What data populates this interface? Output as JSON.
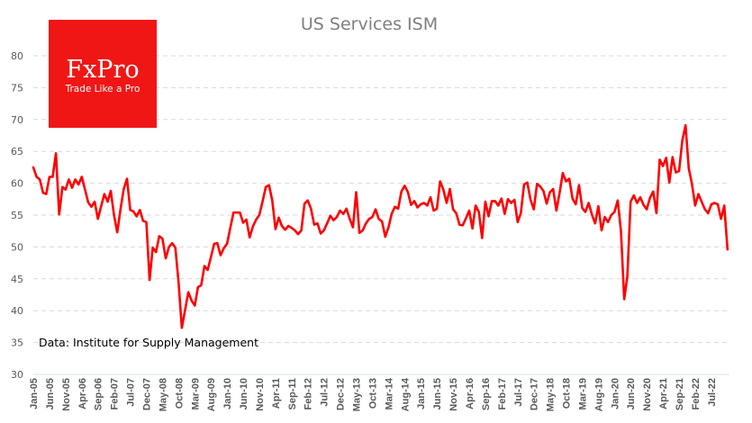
{
  "logo": {
    "brand": "FxPro",
    "tagline": "Trade Like a Pro",
    "color": "#f01616"
  },
  "annotation": "Data: Institute for Supply Management",
  "colors": {
    "line": "#ff0000",
    "grid": "#d9d9d9",
    "axis": "#d9e1ea"
  },
  "chart_data": {
    "type": "line",
    "title": "US Services ISM",
    "xlabel": "",
    "ylabel": "",
    "ylim": [
      30,
      80
    ],
    "yticks": [
      30,
      35,
      40,
      45,
      50,
      55,
      60,
      65,
      70,
      75,
      80
    ],
    "grid": true,
    "legend": "none",
    "x_start": "Jan-05",
    "x_end": "Dec-22",
    "frequency": "monthly",
    "xtick_labels": [
      "Jan-05",
      "Jun-05",
      "Nov-05",
      "Apr-06",
      "Sep-06",
      "Feb-07",
      "Jul-07",
      "Dec-07",
      "May-08",
      "Oct-08",
      "Mar-09",
      "Aug-09",
      "Jan-10",
      "Jun-10",
      "Nov-10",
      "Apr-11",
      "Sep-11",
      "Feb-12",
      "Jul-12",
      "Dec-12",
      "May-13",
      "Oct-13",
      "Mar-14",
      "Aug-14",
      "Jan-15",
      "Jun-15",
      "Nov-15",
      "Apr-16",
      "Sep-16",
      "Feb-17",
      "Jul-17",
      "Dec-17",
      "May-18",
      "Oct-18",
      "Mar-19",
      "Aug-19",
      "Jan-20",
      "Jun-20",
      "Nov-20",
      "Apr-21",
      "Sep-21",
      "Feb-22",
      "Jul-22"
    ],
    "series": [
      {
        "name": "US Services ISM",
        "values": [
          62.5,
          61.0,
          60.6,
          58.5,
          58.3,
          61.0,
          61.0,
          64.7,
          55.1,
          59.4,
          59.0,
          60.6,
          59.3,
          60.6,
          59.8,
          61.0,
          59.0,
          57.0,
          56.3,
          57.1,
          54.4,
          56.4,
          58.3,
          57.1,
          58.8,
          55.0,
          52.3,
          55.9,
          59.1,
          60.7,
          55.8,
          55.6,
          54.8,
          55.8,
          54.1,
          53.9,
          44.8,
          49.9,
          49.2,
          51.7,
          51.3,
          48.2,
          50.0,
          50.6,
          49.9,
          44.4,
          37.3,
          40.1,
          42.9,
          41.6,
          40.8,
          43.7,
          44.0,
          47.0,
          46.4,
          48.4,
          50.5,
          50.6,
          48.7,
          49.8,
          50.5,
          53.0,
          55.4,
          55.4,
          55.4,
          53.8,
          54.3,
          51.5,
          53.2,
          54.3,
          55.0,
          57.1,
          59.4,
          59.7,
          57.3,
          52.8,
          54.6,
          53.3,
          52.7,
          53.3,
          53.0,
          52.6,
          52.0,
          52.6,
          56.8,
          57.3,
          56.0,
          53.5,
          53.7,
          52.1,
          52.6,
          53.7,
          54.9,
          54.2,
          54.7,
          55.7,
          55.2,
          56.0,
          54.4,
          53.1,
          58.6,
          52.2,
          52.6,
          53.7,
          54.4,
          54.7,
          55.9,
          54.4,
          54.0,
          51.6,
          53.1,
          55.2,
          56.3,
          56.0,
          58.7,
          59.6,
          58.6,
          56.6,
          57.2,
          56.2,
          56.7,
          56.9,
          56.5,
          57.8,
          55.7,
          56.0,
          60.3,
          59.0,
          56.9,
          59.1,
          55.9,
          55.3,
          53.5,
          53.4,
          54.5,
          55.7,
          52.9,
          56.5,
          55.5,
          51.4,
          57.1,
          54.8,
          57.2,
          57.2,
          56.5,
          57.6,
          55.2,
          57.5,
          56.9,
          57.4,
          53.9,
          55.3,
          59.8,
          60.1,
          57.4,
          55.9,
          59.9,
          59.5,
          58.8,
          56.8,
          58.6,
          59.1,
          55.7,
          58.5,
          61.6,
          60.3,
          60.7,
          57.6,
          56.7,
          59.7,
          56.1,
          55.5,
          56.9,
          55.1,
          53.7,
          56.4,
          52.6,
          54.7,
          53.9,
          55.0,
          55.5,
          57.3,
          52.5,
          41.8,
          45.4,
          57.1,
          58.1,
          56.9,
          57.8,
          56.6,
          55.9,
          57.7,
          58.7,
          55.3,
          63.7,
          62.7,
          64.0,
          60.1,
          64.1,
          61.7,
          61.9,
          66.7,
          69.1,
          62.3,
          59.9,
          56.5,
          58.3,
          57.1,
          55.9,
          55.3,
          56.7,
          56.9,
          56.7,
          54.4,
          56.5,
          49.6
        ]
      }
    ]
  }
}
